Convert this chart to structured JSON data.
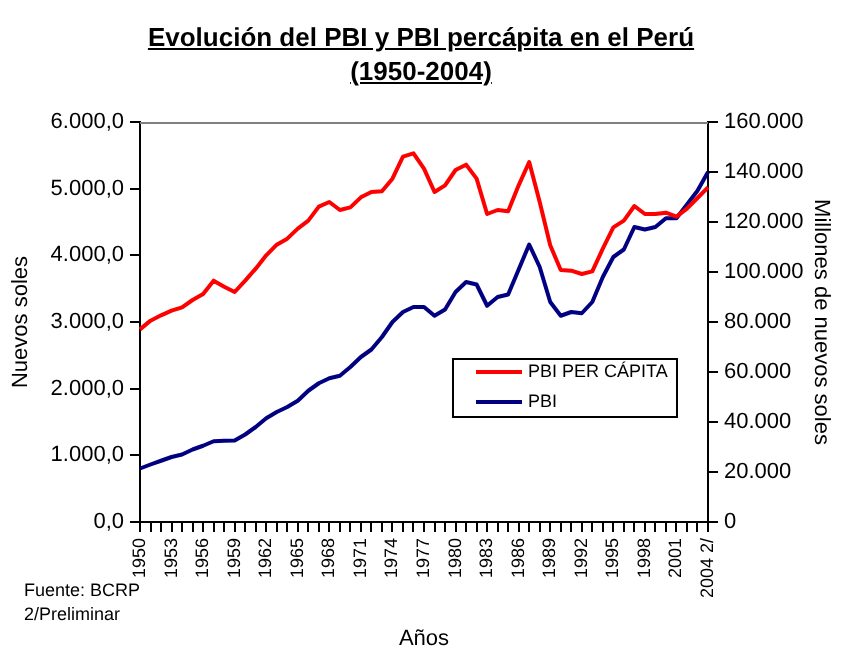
{
  "chart_data": {
    "type": "line",
    "title": "Evolución del PBI y PBI percápita en el Perú",
    "subtitle": "(1950-2004)",
    "xlabel": "Años",
    "ylabel": "Nuevos soles",
    "y2label": "Millones de nuevos soles",
    "categories": [
      "1950",
      null,
      null,
      "1953",
      null,
      null,
      "1956",
      null,
      null,
      "1959",
      null,
      null,
      "1962",
      null,
      null,
      "1965",
      null,
      null,
      "1968",
      null,
      null,
      "1971",
      null,
      null,
      "1974",
      null,
      null,
      "1977",
      null,
      null,
      "1980",
      null,
      null,
      "1983",
      null,
      null,
      "1986",
      null,
      null,
      "1989",
      null,
      null,
      "1992",
      null,
      null,
      "1995",
      null,
      null,
      "1998",
      null,
      null,
      "2001",
      null,
      null,
      "2004 2/"
    ],
    "series": [
      {
        "name": "PBI PER CÁPITA",
        "color": "#ff0000",
        "values": [
          2890,
          3020,
          3100,
          3170,
          3220,
          3330,
          3420,
          3620,
          3530,
          3450,
          3620,
          3800,
          4000,
          4160,
          4250,
          4400,
          4520,
          4730,
          4800,
          4680,
          4720,
          4870,
          4950,
          4960,
          5150,
          5480,
          5530,
          5300,
          4950,
          5050,
          5280,
          5360,
          5150,
          4620,
          4680,
          4660,
          5050,
          5400,
          4800,
          4150,
          3780,
          3770,
          3720,
          3760,
          4100,
          4420,
          4520,
          4740,
          4620,
          4620,
          4640,
          4580,
          4700,
          4860,
          5020
        ]
      },
      {
        "name": "PBI",
        "color": "#000080",
        "axis": "y2",
        "values": [
          21400,
          23000,
          24500,
          26000,
          27000,
          29000,
          30500,
          32300,
          32500,
          32600,
          35000,
          38000,
          41500,
          44000,
          46000,
          48500,
          52500,
          55500,
          57500,
          58500,
          62000,
          66000,
          69000,
          74000,
          80000,
          84000,
          86000,
          86000,
          82500,
          85000,
          92000,
          96000,
          95000,
          86500,
          90000,
          91000,
          101000,
          111000,
          102000,
          88000,
          82500,
          84000,
          83500,
          88000,
          98000,
          106000,
          109000,
          118000,
          117000,
          118000,
          121500,
          121500,
          127000,
          132500,
          140000
        ]
      }
    ],
    "ylim": [
      0,
      6000
    ],
    "yticks": [
      {
        "value": 0,
        "label": "0,0"
      },
      {
        "value": 1000,
        "label": "1.000,0"
      },
      {
        "value": 2000,
        "label": "2.000,0"
      },
      {
        "value": 3000,
        "label": "3.000,0"
      },
      {
        "value": 4000,
        "label": "4.000,0"
      },
      {
        "value": 5000,
        "label": "5.000,0"
      },
      {
        "value": 6000,
        "label": "6.000,0"
      }
    ],
    "y2lim": [
      0,
      160000
    ],
    "y2ticks": [
      0,
      {
        "value": 20000,
        "label": "20.000"
      },
      {
        "value": 40000,
        "label": "40.000"
      },
      {
        "value": 60000,
        "label": "60.000"
      },
      {
        "value": 80000,
        "label": "80.000"
      },
      {
        "value": 100000,
        "label": "100.000"
      },
      {
        "value": 120000,
        "label": "120.000"
      },
      {
        "value": 140000,
        "label": "140.000"
      },
      {
        "value": 160000,
        "label": "160.000"
      }
    ],
    "grid": false,
    "legend": "right",
    "marker": "none",
    "line_style": "solid",
    "annotations": [
      "Fuente: BCRP",
      "2/Preliminar"
    ]
  }
}
